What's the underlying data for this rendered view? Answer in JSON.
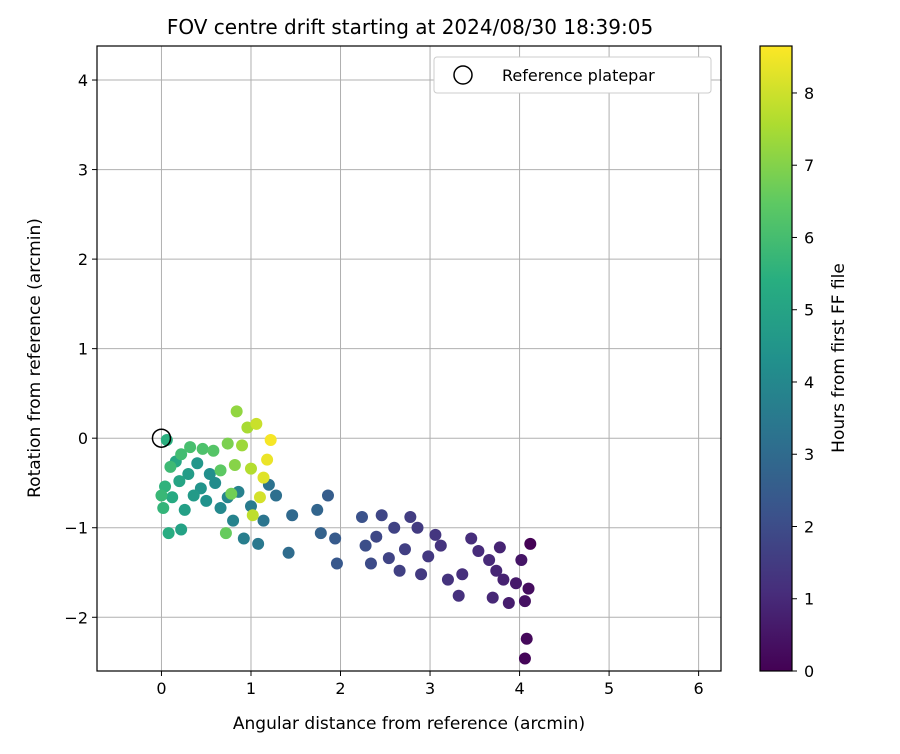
{
  "chart_data": {
    "type": "scatter",
    "title": "FOV centre drift starting at 2024/08/30 18:39:05",
    "xlabel": "Angular distance from reference (arcmin)",
    "ylabel": "Rotation from reference (arcmin)",
    "xlim": [
      -0.72,
      6.25
    ],
    "ylim": [
      -2.6,
      4.38
    ],
    "xticks": [
      0,
      1,
      2,
      3,
      4,
      5,
      6
    ],
    "yticks": [
      -2,
      -1,
      0,
      1,
      2,
      3,
      4
    ],
    "xtick_labels": [
      "0",
      "1",
      "2",
      "3",
      "4",
      "5",
      "6"
    ],
    "ytick_labels": [
      "−2",
      "−1",
      "0",
      "1",
      "2",
      "3",
      "4"
    ],
    "grid": true,
    "legend": {
      "placement": "top-right",
      "entries": [
        "Reference platepar"
      ]
    },
    "colorbar": {
      "label": "Hours from first FF file",
      "colormap": "viridis",
      "range": [
        0,
        8.65
      ],
      "ticks": [
        0,
        1,
        2,
        3,
        4,
        5,
        6,
        7,
        8
      ],
      "tick_labels": [
        "0",
        "1",
        "2",
        "3",
        "4",
        "5",
        "6",
        "7",
        "8"
      ]
    },
    "reference_point": {
      "x": 0,
      "y": 0
    },
    "points": [
      {
        "x": 4.12,
        "y": -1.18,
        "hours": 0.02
      },
      {
        "x": 4.06,
        "y": -2.46,
        "hours": 0.1
      },
      {
        "x": 4.08,
        "y": -2.24,
        "hours": 0.2
      },
      {
        "x": 4.1,
        "y": -1.68,
        "hours": 0.3
      },
      {
        "x": 4.06,
        "y": -1.82,
        "hours": 0.4
      },
      {
        "x": 4.02,
        "y": -1.36,
        "hours": 0.5
      },
      {
        "x": 3.96,
        "y": -1.62,
        "hours": 0.6
      },
      {
        "x": 3.88,
        "y": -1.84,
        "hours": 0.7
      },
      {
        "x": 3.82,
        "y": -1.58,
        "hours": 0.8
      },
      {
        "x": 3.78,
        "y": -1.22,
        "hours": 0.85
      },
      {
        "x": 3.74,
        "y": -1.48,
        "hours": 0.9
      },
      {
        "x": 3.7,
        "y": -1.78,
        "hours": 0.95
      },
      {
        "x": 3.66,
        "y": -1.36,
        "hours": 1.0
      },
      {
        "x": 3.54,
        "y": -1.26,
        "hours": 1.05
      },
      {
        "x": 3.46,
        "y": -1.12,
        "hours": 1.1
      },
      {
        "x": 3.36,
        "y": -1.52,
        "hours": 1.15
      },
      {
        "x": 3.32,
        "y": -1.76,
        "hours": 1.2
      },
      {
        "x": 3.2,
        "y": -1.58,
        "hours": 1.25
      },
      {
        "x": 3.12,
        "y": -1.2,
        "hours": 1.3
      },
      {
        "x": 3.06,
        "y": -1.08,
        "hours": 1.35
      },
      {
        "x": 2.98,
        "y": -1.32,
        "hours": 1.4
      },
      {
        "x": 2.9,
        "y": -1.52,
        "hours": 1.45
      },
      {
        "x": 2.86,
        "y": -1.0,
        "hours": 1.5
      },
      {
        "x": 2.78,
        "y": -0.88,
        "hours": 1.55
      },
      {
        "x": 2.72,
        "y": -1.24,
        "hours": 1.6
      },
      {
        "x": 2.66,
        "y": -1.48,
        "hours": 1.65
      },
      {
        "x": 2.6,
        "y": -1.0,
        "hours": 1.7
      },
      {
        "x": 2.54,
        "y": -1.34,
        "hours": 1.75
      },
      {
        "x": 2.46,
        "y": -0.86,
        "hours": 1.8
      },
      {
        "x": 2.4,
        "y": -1.1,
        "hours": 1.85
      },
      {
        "x": 2.34,
        "y": -1.4,
        "hours": 1.95
      },
      {
        "x": 2.28,
        "y": -1.2,
        "hours": 2.05
      },
      {
        "x": 2.24,
        "y": -0.88,
        "hours": 2.15
      },
      {
        "x": 1.96,
        "y": -1.4,
        "hours": 2.35
      },
      {
        "x": 1.94,
        "y": -1.12,
        "hours": 2.45
      },
      {
        "x": 1.86,
        "y": -0.64,
        "hours": 2.55
      },
      {
        "x": 1.78,
        "y": -1.06,
        "hours": 2.7
      },
      {
        "x": 1.74,
        "y": -0.8,
        "hours": 2.8
      },
      {
        "x": 1.46,
        "y": -0.86,
        "hours": 2.95
      },
      {
        "x": 1.42,
        "y": -1.28,
        "hours": 3.05
      },
      {
        "x": 1.28,
        "y": -0.64,
        "hours": 3.15
      },
      {
        "x": 1.2,
        "y": -0.52,
        "hours": 3.25
      },
      {
        "x": 1.14,
        "y": -0.92,
        "hours": 3.35
      },
      {
        "x": 1.08,
        "y": -1.18,
        "hours": 3.45
      },
      {
        "x": 1.0,
        "y": -0.76,
        "hours": 3.55
      },
      {
        "x": 0.92,
        "y": -1.12,
        "hours": 3.65
      },
      {
        "x": 0.86,
        "y": -0.6,
        "hours": 3.75
      },
      {
        "x": 0.8,
        "y": -0.92,
        "hours": 3.85
      },
      {
        "x": 0.74,
        "y": -0.66,
        "hours": 3.95
      },
      {
        "x": 0.66,
        "y": -0.78,
        "hours": 4.05
      },
      {
        "x": 0.6,
        "y": -0.5,
        "hours": 4.15
      },
      {
        "x": 0.54,
        "y": -0.4,
        "hours": 4.25
      },
      {
        "x": 0.5,
        "y": -0.7,
        "hours": 4.35
      },
      {
        "x": 0.44,
        "y": -0.56,
        "hours": 4.45
      },
      {
        "x": 0.4,
        "y": -0.28,
        "hours": 4.55
      },
      {
        "x": 0.36,
        "y": -0.64,
        "hours": 4.65
      },
      {
        "x": 0.3,
        "y": -0.4,
        "hours": 4.75
      },
      {
        "x": 0.26,
        "y": -0.8,
        "hours": 4.85
      },
      {
        "x": 0.22,
        "y": -1.02,
        "hours": 4.95
      },
      {
        "x": 0.2,
        "y": -0.48,
        "hours": 5.05
      },
      {
        "x": 0.16,
        "y": -0.26,
        "hours": 5.15
      },
      {
        "x": 0.12,
        "y": -0.66,
        "hours": 5.25
      },
      {
        "x": 0.08,
        "y": -1.06,
        "hours": 5.35
      },
      {
        "x": 0.06,
        "y": -0.02,
        "hours": 5.45
      },
      {
        "x": 0.04,
        "y": -0.54,
        "hours": 5.55
      },
      {
        "x": 0.02,
        "y": -0.78,
        "hours": 5.65
      },
      {
        "x": 0.0,
        "y": -0.64,
        "hours": 5.75
      },
      {
        "x": 0.1,
        "y": -0.32,
        "hours": 5.85
      },
      {
        "x": 0.22,
        "y": -0.18,
        "hours": 5.95
      },
      {
        "x": 0.32,
        "y": -0.1,
        "hours": 6.05
      },
      {
        "x": 0.46,
        "y": -0.12,
        "hours": 6.15
      },
      {
        "x": 0.58,
        "y": -0.14,
        "hours": 6.3
      },
      {
        "x": 0.66,
        "y": -0.36,
        "hours": 6.45
      },
      {
        "x": 0.72,
        "y": -1.06,
        "hours": 6.6
      },
      {
        "x": 0.78,
        "y": -0.62,
        "hours": 6.75
      },
      {
        "x": 0.74,
        "y": -0.06,
        "hours": 6.9
      },
      {
        "x": 0.82,
        "y": -0.3,
        "hours": 7.05
      },
      {
        "x": 0.84,
        "y": 0.3,
        "hours": 7.2
      },
      {
        "x": 0.9,
        "y": -0.08,
        "hours": 7.35
      },
      {
        "x": 0.96,
        "y": 0.12,
        "hours": 7.5
      },
      {
        "x": 1.0,
        "y": -0.34,
        "hours": 7.65
      },
      {
        "x": 1.02,
        "y": -0.86,
        "hours": 7.8
      },
      {
        "x": 1.06,
        "y": 0.16,
        "hours": 7.95
      },
      {
        "x": 1.1,
        "y": -0.66,
        "hours": 8.1
      },
      {
        "x": 1.14,
        "y": -0.44,
        "hours": 8.25
      },
      {
        "x": 1.18,
        "y": -0.24,
        "hours": 8.4
      },
      {
        "x": 1.22,
        "y": -0.02,
        "hours": 8.55
      }
    ]
  }
}
